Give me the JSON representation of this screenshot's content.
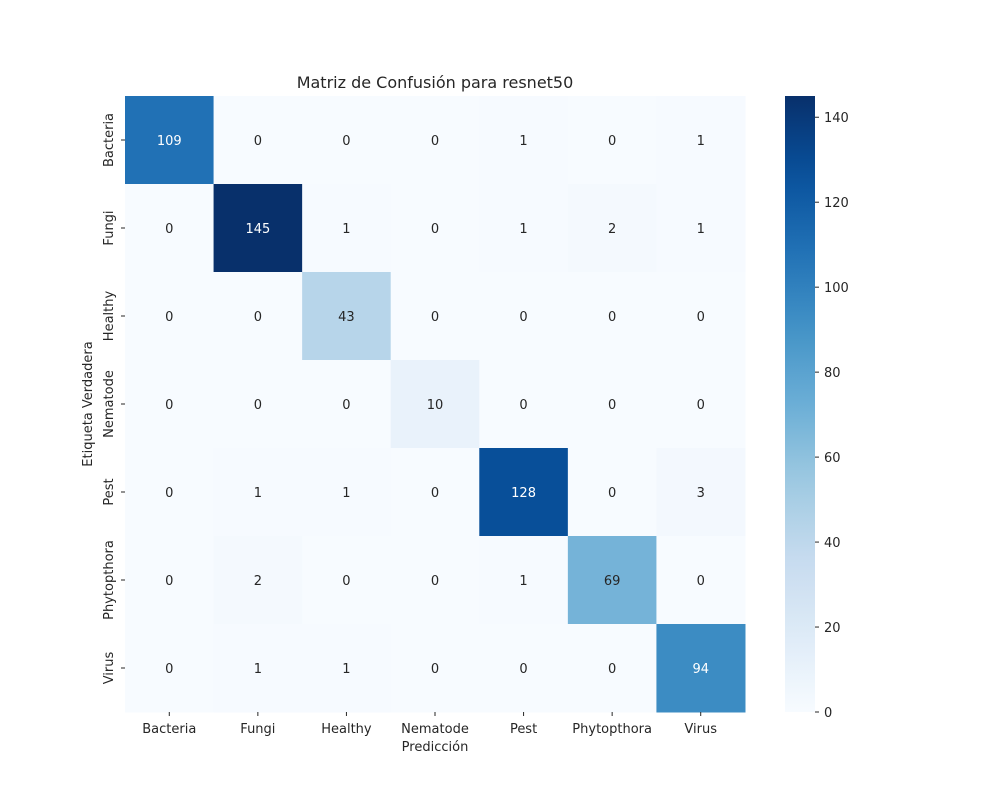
{
  "chart_data": {
    "type": "heatmap",
    "title": "Matriz de Confusión para resnet50",
    "xlabel": "Predicción",
    "ylabel": "Etiqueta Verdadera",
    "x_categories": [
      "Bacteria",
      "Fungi",
      "Healthy",
      "Nematode",
      "Pest",
      "Phytopthora",
      "Virus"
    ],
    "y_categories": [
      "Bacteria",
      "Fungi",
      "Healthy",
      "Nematode",
      "Pest",
      "Phytopthora",
      "Virus"
    ],
    "matrix": [
      [
        109,
        0,
        0,
        0,
        1,
        0,
        1
      ],
      [
        0,
        145,
        1,
        0,
        1,
        2,
        1
      ],
      [
        0,
        0,
        43,
        0,
        0,
        0,
        0
      ],
      [
        0,
        0,
        0,
        10,
        0,
        0,
        0
      ],
      [
        0,
        1,
        1,
        0,
        128,
        0,
        3
      ],
      [
        0,
        2,
        0,
        0,
        1,
        69,
        0
      ],
      [
        0,
        1,
        1,
        0,
        0,
        0,
        94
      ]
    ],
    "colormap": "Blues",
    "vmin": 0,
    "vmax": 145,
    "colorbar_ticks": [
      0,
      20,
      40,
      60,
      80,
      100,
      120,
      140
    ],
    "annotations": true
  }
}
